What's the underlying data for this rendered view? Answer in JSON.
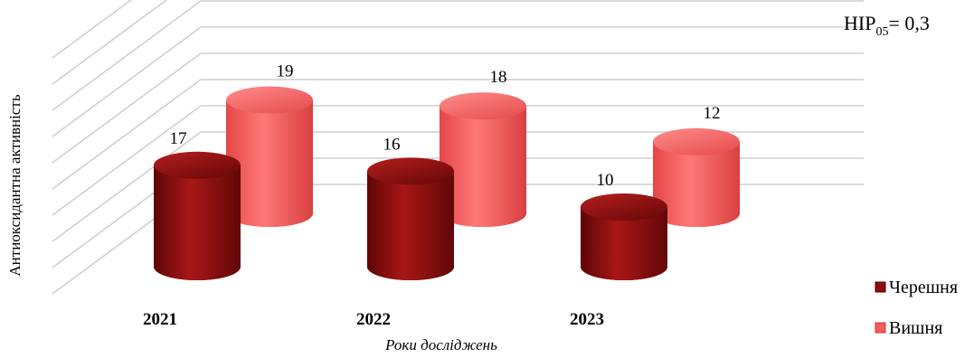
{
  "chart_data": {
    "type": "bar",
    "style": "3d-cylinder",
    "categories": [
      "2021",
      "2022",
      "2023"
    ],
    "series": [
      {
        "name": "Черешня",
        "values": [
          17,
          16,
          10
        ],
        "color": "#8b0d0d"
      },
      {
        "name": "Вишня",
        "values": [
          19,
          18,
          12
        ],
        "color": "#f45b5b"
      }
    ],
    "ylabel": "Антиоксидантна  активність",
    "xlabel": "Роки досліджень",
    "ylim": [
      0,
      30
    ],
    "grid": true,
    "legend_position": "bottom-right",
    "annotation": {
      "prefix": "HIP",
      "subscript": "05",
      "suffix": "= 0,3"
    }
  }
}
